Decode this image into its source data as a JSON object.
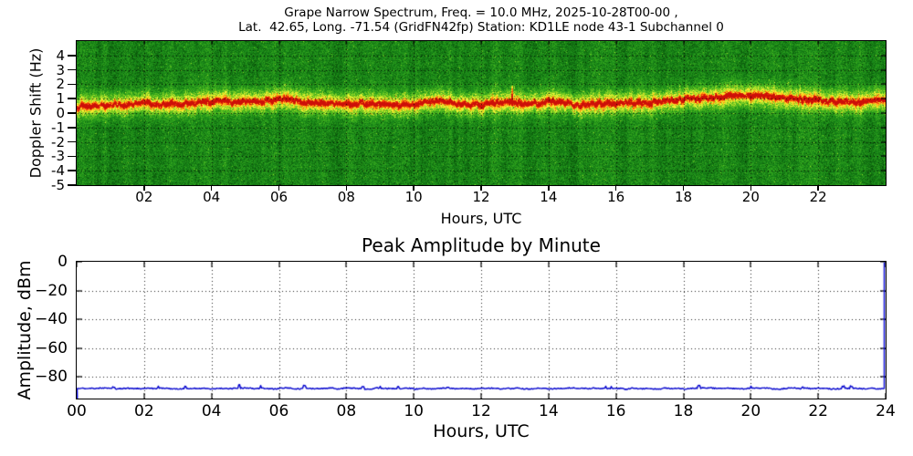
{
  "figure": {
    "background": "#ffffff",
    "spine_color": "#000000",
    "grid_style": "dotted black"
  },
  "chart_data": [
    {
      "type": "heatmap",
      "name": "doppler-spectrogram",
      "title_line1": "Grape Narrow Spectrum, Freq. = 10.0 MHz, 2025-10-28T00-00 ,",
      "title_line2": "Lat.  42.65, Long. -71.54 (GridFN42fp) Station: KD1LE node 43-1 Subchannel 0",
      "xlabel": "Hours, UTC",
      "ylabel": "Doppler Shift (Hz)",
      "xlim": [
        0,
        24
      ],
      "ylim": [
        -5,
        5
      ],
      "xticks": [
        "02",
        "04",
        "06",
        "08",
        "10",
        "12",
        "14",
        "16",
        "18",
        "20",
        "22"
      ],
      "xtick_values": [
        2,
        4,
        6,
        8,
        10,
        12,
        14,
        16,
        18,
        20,
        22
      ],
      "yticks": [
        "4",
        "3",
        "2",
        "1",
        "0",
        "-1",
        "-2",
        "-3",
        "-4",
        "-5"
      ],
      "ytick_values": [
        4,
        3,
        2,
        1,
        0,
        -1,
        -2,
        -3,
        -4,
        -5
      ],
      "grid": "dotted",
      "colormap_stops": [
        [
          0.0,
          "#053405"
        ],
        [
          0.15,
          "#0d600d"
        ],
        [
          0.32,
          "#1a8a1a"
        ],
        [
          0.48,
          "#3caf1e"
        ],
        [
          0.6,
          "#7dcd23"
        ],
        [
          0.68,
          "#c8e82d"
        ],
        [
          0.74,
          "#fafa3c"
        ],
        [
          0.8,
          "#ffcd19"
        ],
        [
          0.87,
          "#ff820f"
        ],
        [
          0.94,
          "#f53c0a"
        ],
        [
          1.0,
          "#cd0f08"
        ]
      ],
      "band": {
        "description": "carrier doppler trace, red core with yellow glow over green noise",
        "hours": [
          0,
          1,
          2,
          3,
          4,
          5,
          6,
          7,
          8,
          9,
          10,
          11,
          12,
          13,
          14,
          15,
          16,
          17,
          18,
          19,
          20,
          21,
          22,
          23,
          24
        ],
        "center_hz_by_hour": [
          0.45,
          0.6,
          0.7,
          0.6,
          0.65,
          0.8,
          0.9,
          0.7,
          0.7,
          0.6,
          0.65,
          0.75,
          0.55,
          0.7,
          0.8,
          0.6,
          0.7,
          0.8,
          0.9,
          1.0,
          1.2,
          1.1,
          0.9,
          0.8,
          0.85
        ],
        "core_halfwidth_hz": 0.2,
        "glow_halfwidth_hz": 0.8,
        "spikes": [
          {
            "hour": 12.9,
            "to_hz": 1.9
          }
        ]
      },
      "background_noise": {
        "base": 0.3,
        "amplitude": 0.13
      }
    },
    {
      "type": "line",
      "name": "peak-amplitude",
      "title": "Peak Amplitude by Minute",
      "xlabel": "Hours, UTC",
      "ylabel": "Amplitude, dBm",
      "xlim": [
        0,
        24
      ],
      "ylim": [
        -95,
        0
      ],
      "xticks": [
        "00",
        "02",
        "04",
        "06",
        "08",
        "10",
        "12",
        "14",
        "16",
        "18",
        "20",
        "22",
        "24"
      ],
      "xtick_values": [
        0,
        2,
        4,
        6,
        8,
        10,
        12,
        14,
        16,
        18,
        20,
        22,
        24
      ],
      "yticks": [
        "0",
        "−20",
        "−40",
        "−60",
        "−80"
      ],
      "ytick_values": [
        0,
        -20,
        -40,
        -60,
        -80
      ],
      "grid": "dotted",
      "line_color": "#0000cd",
      "baseline_dbm": -88,
      "noise_dbm": 0.7,
      "start_point_dbm": -95,
      "end_spike": {
        "hour": 24,
        "to_dbm": 0
      }
    }
  ]
}
